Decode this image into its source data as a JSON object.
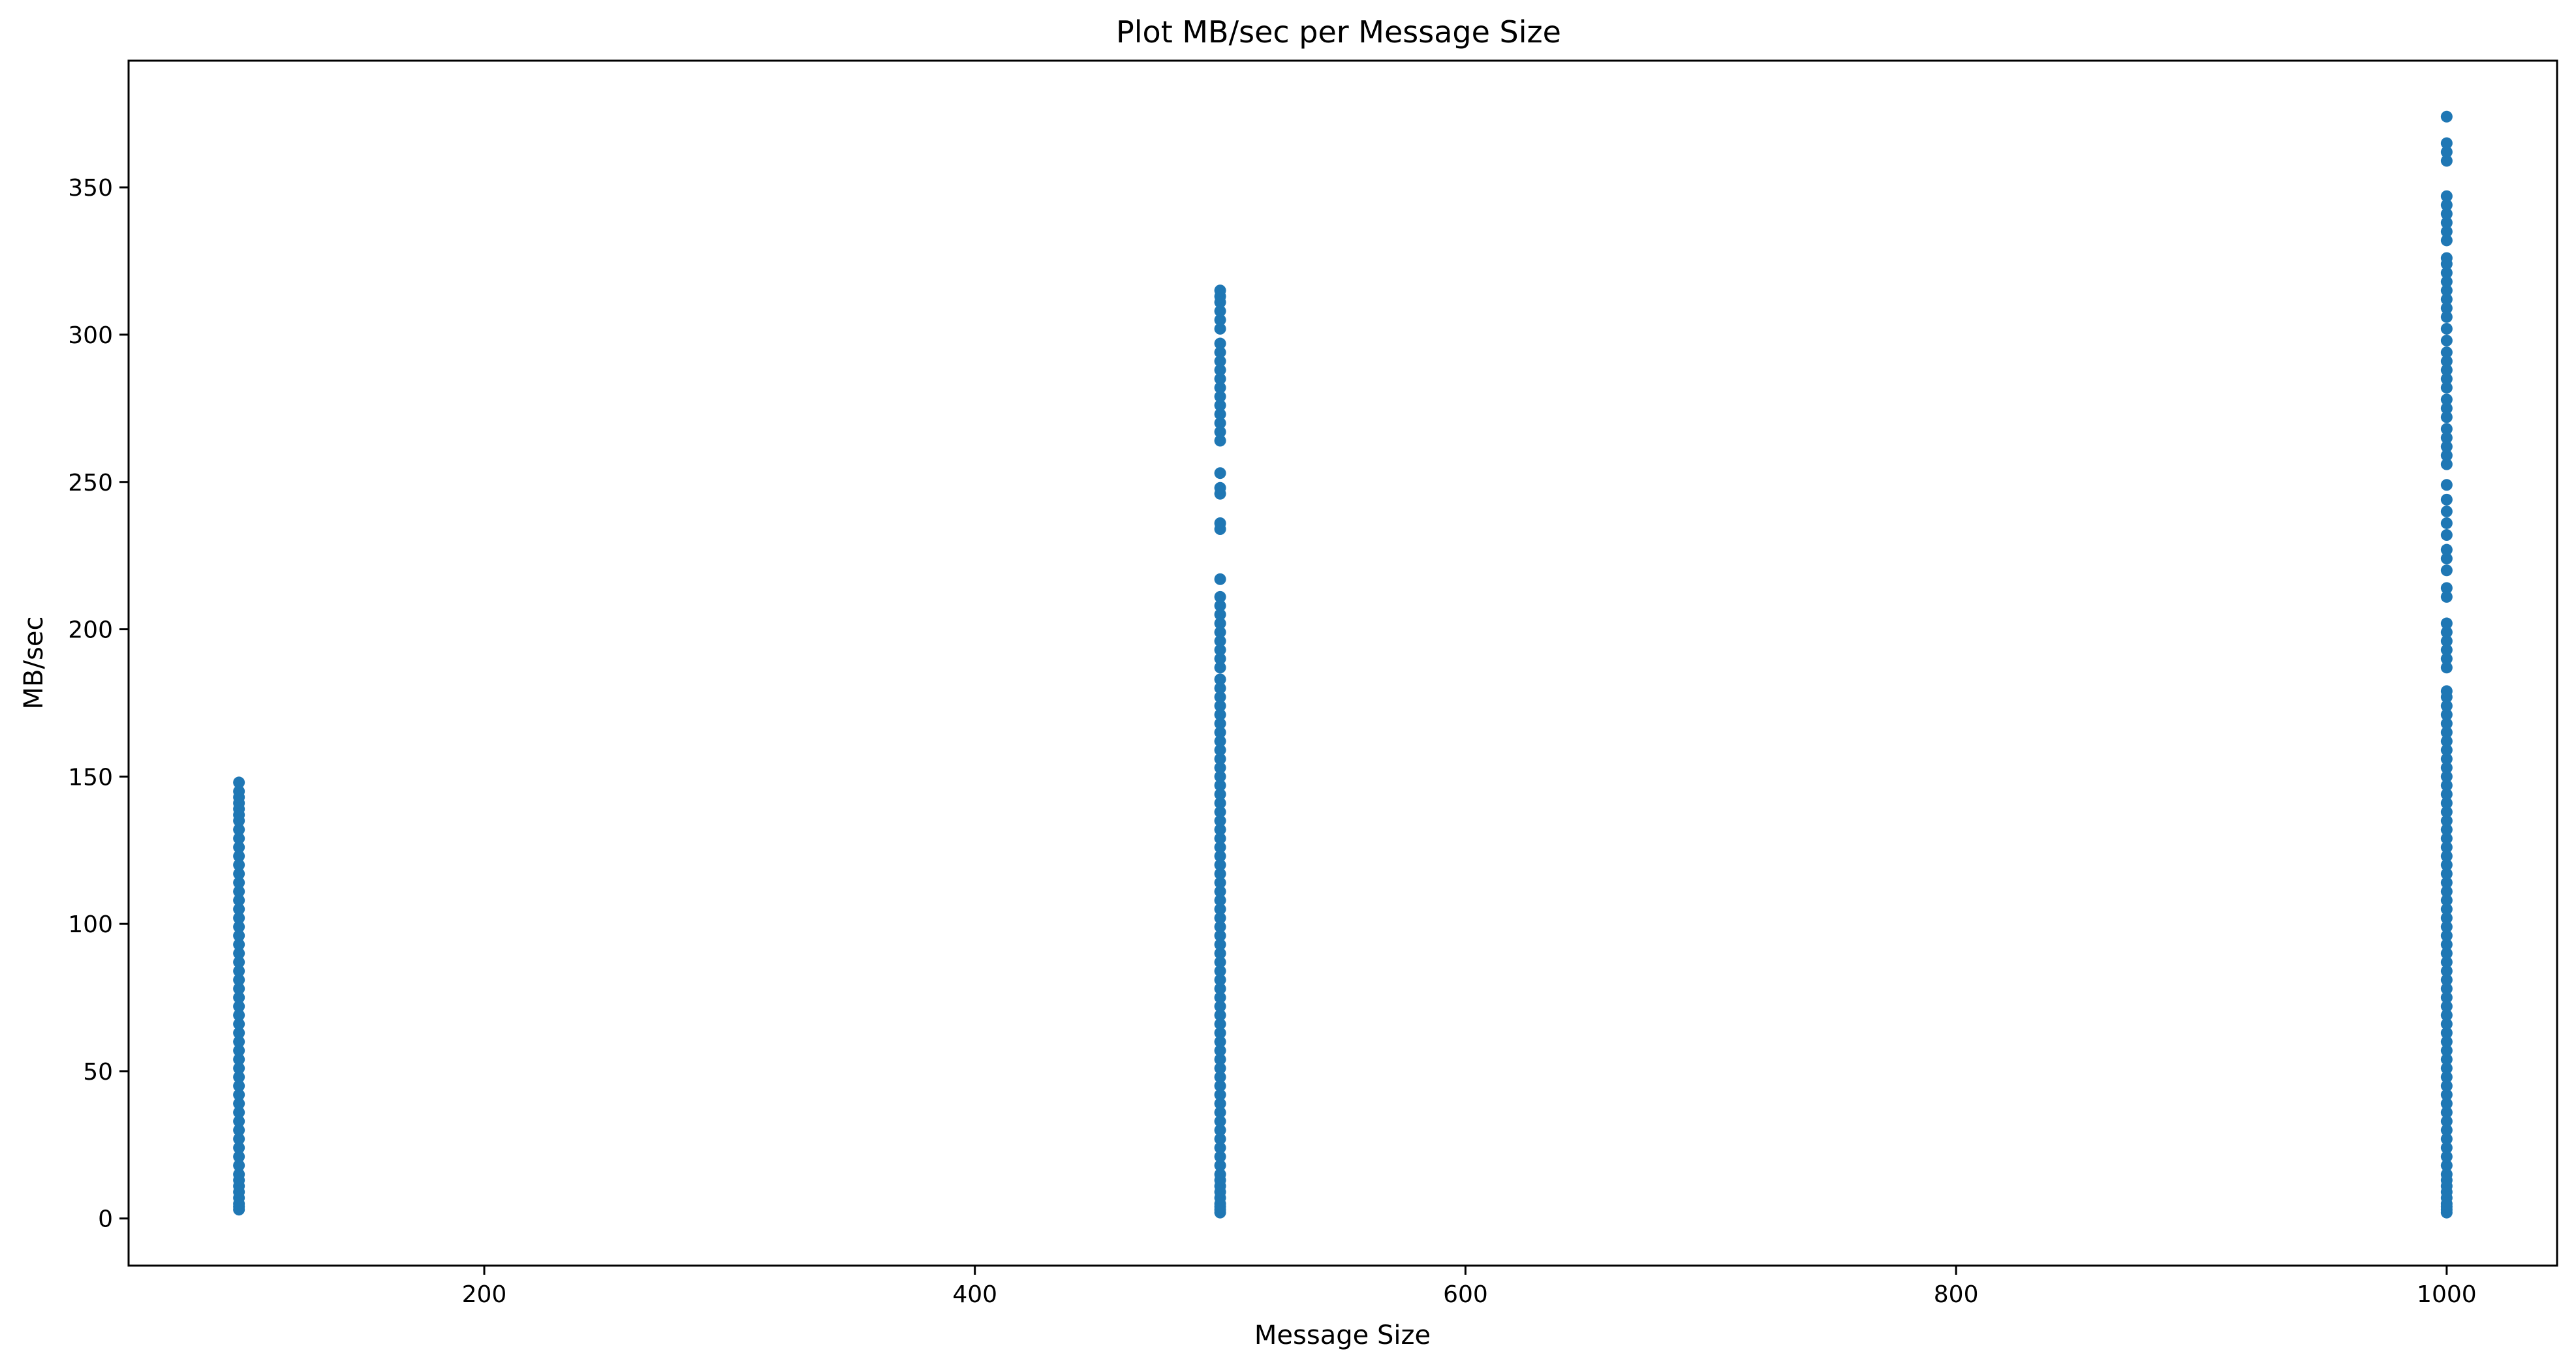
{
  "chart_data": {
    "type": "scatter",
    "title": "Plot MB/sec per Message Size",
    "xlabel": "Message Size",
    "ylabel": "MB/sec",
    "xlim": [
      55,
      1045
    ],
    "ylim": [
      -16,
      393
    ],
    "xticks": [
      200,
      400,
      600,
      800,
      1000
    ],
    "yticks": [
      0,
      50,
      100,
      150,
      200,
      250,
      300,
      350
    ],
    "grid": false,
    "legend": "none",
    "marker_color": "#1f77b4",
    "series": [
      {
        "x": 100,
        "y": [
          3,
          4,
          5,
          7,
          9,
          11,
          13,
          15,
          18,
          21,
          24,
          27,
          30,
          33,
          36,
          39,
          42,
          45,
          48,
          51,
          54,
          57,
          60,
          63,
          66,
          69,
          72,
          75,
          78,
          81,
          84,
          87,
          90,
          93,
          96,
          99,
          102,
          105,
          108,
          111,
          114,
          117,
          120,
          123,
          126,
          129,
          132,
          135,
          137,
          139,
          141,
          143,
          145,
          148
        ]
      },
      {
        "x": 500,
        "y": [
          2,
          3,
          4,
          5,
          7,
          9,
          11,
          13,
          15,
          18,
          21,
          24,
          27,
          30,
          33,
          36,
          39,
          42,
          45,
          48,
          51,
          54,
          57,
          60,
          63,
          66,
          69,
          72,
          75,
          78,
          81,
          84,
          87,
          90,
          93,
          96,
          99,
          102,
          105,
          108,
          111,
          114,
          117,
          120,
          123,
          126,
          129,
          132,
          135,
          138,
          141,
          144,
          147,
          150,
          153,
          156,
          159,
          162,
          165,
          168,
          171,
          174,
          177,
          180,
          183,
          187,
          190,
          193,
          196,
          199,
          202,
          205,
          208,
          211,
          217,
          234,
          236,
          246,
          248,
          253,
          264,
          267,
          270,
          273,
          276,
          279,
          282,
          285,
          288,
          291,
          294,
          297,
          302,
          305,
          308,
          311,
          313,
          315
        ]
      },
      {
        "x": 1000,
        "y": [
          2,
          3,
          4,
          5,
          7,
          9,
          11,
          13,
          15,
          18,
          21,
          24,
          27,
          30,
          33,
          36,
          39,
          42,
          45,
          48,
          51,
          54,
          57,
          60,
          63,
          66,
          69,
          72,
          75,
          78,
          81,
          84,
          87,
          90,
          93,
          96,
          99,
          102,
          105,
          108,
          111,
          114,
          117,
          120,
          123,
          126,
          129,
          132,
          135,
          138,
          141,
          144,
          147,
          150,
          153,
          156,
          159,
          162,
          165,
          168,
          171,
          174,
          177,
          179,
          187,
          190,
          193,
          196,
          199,
          202,
          211,
          214,
          220,
          224,
          227,
          232,
          236,
          240,
          244,
          249,
          256,
          259,
          262,
          265,
          268,
          272,
          275,
          278,
          282,
          285,
          288,
          291,
          294,
          298,
          302,
          306,
          309,
          312,
          315,
          318,
          321,
          324,
          326,
          332,
          335,
          338,
          341,
          344,
          347,
          359,
          362,
          365,
          374
        ]
      }
    ]
  }
}
